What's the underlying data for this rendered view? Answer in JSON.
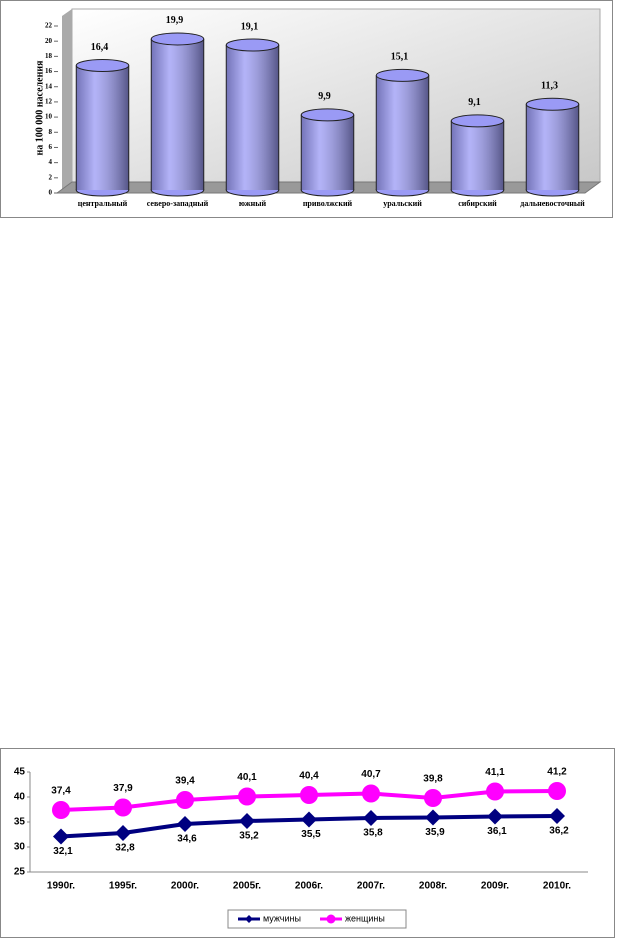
{
  "chart_data": [
    {
      "type": "bar3d",
      "y_label": "на 100 000 населения",
      "categories": [
        "центральный",
        "северо-западный",
        "южный",
        "приволжский",
        "уральский",
        "сибирский",
        "дальневосточный"
      ],
      "values": [
        16.4,
        19.9,
        19.1,
        9.9,
        15.1,
        9.1,
        11.3
      ],
      "value_labels": [
        "16,4",
        "19,9",
        "19,1",
        "9,9",
        "15,1",
        "9,1",
        "11,3"
      ],
      "color": "#9a9af5",
      "ylim": [
        0,
        22
      ],
      "yticks": [
        0,
        2,
        4,
        6,
        8,
        10,
        12,
        14,
        16,
        18,
        20,
        22
      ]
    },
    {
      "type": "line",
      "categories": [
        "1990г.",
        "1995г.",
        "2000г.",
        "2005г.",
        "2006г.",
        "2007г.",
        "2008г.",
        "2009г.",
        "2010г."
      ],
      "series": [
        {
          "name": "мужчины",
          "color": "#000080",
          "marker": "diamond",
          "values": [
            32.1,
            32.8,
            34.6,
            35.2,
            35.5,
            35.8,
            35.9,
            36.1,
            36.2
          ],
          "value_labels": [
            "32,1",
            "32,8",
            "34,6",
            "35,2",
            "35,5",
            "35,8",
            "35,9",
            "36,1",
            "36,2"
          ]
        },
        {
          "name": "женщины",
          "color": "#ff00ff",
          "marker": "circle",
          "values": [
            37.4,
            37.9,
            39.4,
            40.1,
            40.4,
            40.7,
            39.8,
            41.1,
            41.2
          ],
          "value_labels": [
            "37,4",
            "37,9",
            "39,4",
            "40,1",
            "40,4",
            "40,7",
            "39,8",
            "41,1",
            "41,2"
          ]
        }
      ],
      "ylim": [
        25,
        45
      ],
      "yticks": [
        25,
        30,
        35,
        40,
        45
      ],
      "legend": "bottom"
    }
  ]
}
